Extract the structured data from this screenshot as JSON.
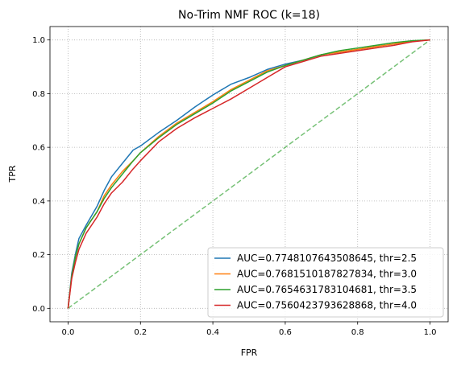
{
  "chart_data": {
    "type": "line",
    "title": "No-Trim NMF ROC (k=18)",
    "xlabel": "FPR",
    "ylabel": "TPR",
    "xlim": [
      -0.05,
      1.05
    ],
    "ylim": [
      -0.05,
      1.05
    ],
    "x_ticks": [
      "0.0",
      "0.2",
      "0.4",
      "0.6",
      "0.8",
      "1.0"
    ],
    "y_ticks": [
      "0.0",
      "0.2",
      "0.4",
      "0.6",
      "0.8",
      "1.0"
    ],
    "grid": true,
    "legend_position": "bottom-right",
    "series": [
      {
        "name": "AUC=0.7748107643508645, thr=2.5",
        "color": "#1f77b4",
        "x": [
          0,
          0.01,
          0.02,
          0.03,
          0.05,
          0.08,
          0.1,
          0.12,
          0.15,
          0.18,
          0.2,
          0.25,
          0.3,
          0.35,
          0.4,
          0.45,
          0.5,
          0.55,
          0.6,
          0.65,
          0.7,
          0.75,
          0.8,
          0.85,
          0.9,
          0.95,
          1.0
        ],
        "y": [
          0,
          0.13,
          0.2,
          0.26,
          0.31,
          0.38,
          0.44,
          0.49,
          0.54,
          0.59,
          0.605,
          0.655,
          0.7,
          0.75,
          0.795,
          0.835,
          0.86,
          0.89,
          0.91,
          0.925,
          0.945,
          0.955,
          0.965,
          0.975,
          0.985,
          0.995,
          1.0
        ]
      },
      {
        "name": "AUC=0.7681510187827834, thr=3.0",
        "color": "#ff7f0e",
        "x": [
          0,
          0.01,
          0.02,
          0.03,
          0.05,
          0.08,
          0.1,
          0.12,
          0.15,
          0.18,
          0.2,
          0.25,
          0.3,
          0.35,
          0.4,
          0.45,
          0.5,
          0.55,
          0.6,
          0.65,
          0.7,
          0.75,
          0.8,
          0.85,
          0.9,
          0.95,
          1.0
        ],
        "y": [
          0,
          0.12,
          0.19,
          0.24,
          0.3,
          0.36,
          0.42,
          0.46,
          0.51,
          0.55,
          0.58,
          0.64,
          0.69,
          0.73,
          0.77,
          0.815,
          0.85,
          0.885,
          0.905,
          0.925,
          0.945,
          0.955,
          0.965,
          0.975,
          0.985,
          0.995,
          1.0
        ]
      },
      {
        "name": "AUC=0.7654631783104681, thr=3.5",
        "color": "#2ca02c",
        "x": [
          0,
          0.01,
          0.02,
          0.03,
          0.05,
          0.08,
          0.1,
          0.12,
          0.15,
          0.18,
          0.2,
          0.25,
          0.3,
          0.35,
          0.4,
          0.45,
          0.5,
          0.55,
          0.6,
          0.65,
          0.7,
          0.75,
          0.8,
          0.85,
          0.9,
          0.95,
          1.0
        ],
        "y": [
          0,
          0.12,
          0.19,
          0.24,
          0.3,
          0.36,
          0.41,
          0.45,
          0.5,
          0.55,
          0.58,
          0.635,
          0.685,
          0.725,
          0.765,
          0.81,
          0.845,
          0.88,
          0.905,
          0.925,
          0.945,
          0.96,
          0.97,
          0.98,
          0.99,
          0.997,
          1.0
        ]
      },
      {
        "name": "AUC=0.7560423793628868, thr=4.0",
        "color": "#d62728",
        "x": [
          0,
          0.01,
          0.02,
          0.03,
          0.05,
          0.08,
          0.1,
          0.12,
          0.15,
          0.18,
          0.2,
          0.25,
          0.3,
          0.35,
          0.4,
          0.45,
          0.5,
          0.55,
          0.6,
          0.65,
          0.7,
          0.75,
          0.8,
          0.85,
          0.9,
          0.95,
          1.0
        ],
        "y": [
          0,
          0.11,
          0.17,
          0.22,
          0.28,
          0.34,
          0.39,
          0.43,
          0.47,
          0.52,
          0.55,
          0.62,
          0.67,
          0.71,
          0.745,
          0.78,
          0.82,
          0.86,
          0.9,
          0.92,
          0.94,
          0.95,
          0.96,
          0.97,
          0.98,
          0.993,
          1.0
        ]
      }
    ],
    "reference_line": {
      "color": "#2ca02c",
      "x": [
        0,
        1
      ],
      "y": [
        0,
        1
      ]
    }
  }
}
